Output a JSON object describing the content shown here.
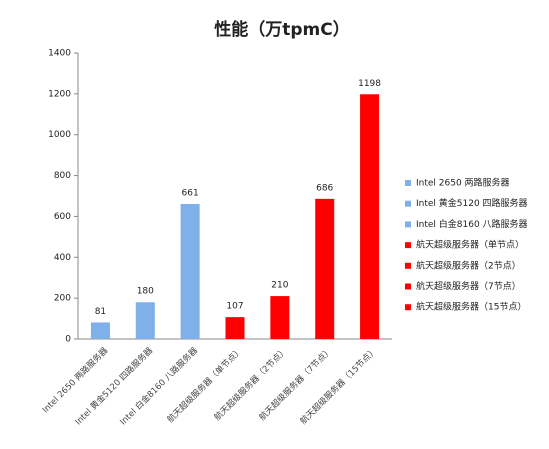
{
  "chart_data": {
    "type": "bar",
    "title": "性能（万tpmC）",
    "categories": [
      "Intel 2650 两路服务器",
      "Intel 黄金5120 四路服务器",
      "Intel 白金8160 八路服务器",
      "航天超级服务器（单节点）",
      "航天超级服务器（2节点）",
      "航天超级服务器（7节点）",
      "航天超级服务器（15节点）"
    ],
    "values": [
      81,
      180,
      661,
      107,
      210,
      686,
      1198
    ],
    "colors": [
      "#7fb0ea",
      "#7fb0ea",
      "#7fb0ea",
      "#ff0000",
      "#ff0000",
      "#ff0000",
      "#ff0000"
    ],
    "ylim": [
      0,
      1400
    ],
    "yticks": [
      0,
      200,
      400,
      600,
      800,
      1000,
      1200,
      1400
    ],
    "grid": false,
    "legend": "right"
  }
}
